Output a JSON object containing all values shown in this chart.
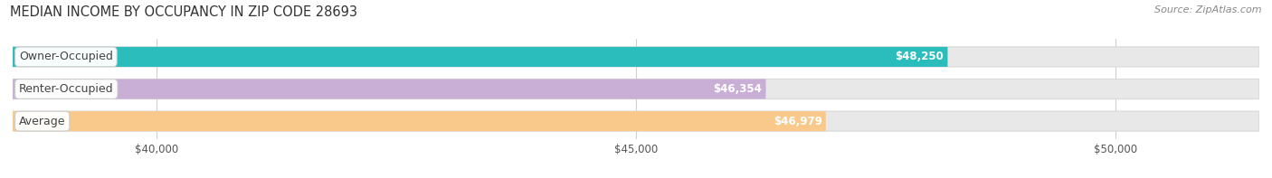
{
  "title": "MEDIAN INCOME BY OCCUPANCY IN ZIP CODE 28693",
  "source": "Source: ZipAtlas.com",
  "categories": [
    "Owner-Occupied",
    "Renter-Occupied",
    "Average"
  ],
  "values": [
    48250,
    46354,
    46979
  ],
  "labels": [
    "$48,250",
    "$46,354",
    "$46,979"
  ],
  "bar_colors": [
    "#2bbcbc",
    "#c9afd6",
    "#f9c98c"
  ],
  "background_color": "#ffffff",
  "plot_bg": "#ffffff",
  "xmin": 38500,
  "xmax": 51500,
  "xticks": [
    40000,
    45000,
    50000
  ],
  "xticklabels": [
    "$40,000",
    "$45,000",
    "$50,000"
  ],
  "title_fontsize": 10.5,
  "source_fontsize": 8,
  "label_fontsize": 8.5,
  "cat_fontsize": 9,
  "tick_fontsize": 8.5,
  "bar_height": 0.62,
  "track_color": "#e8e8e8",
  "track_edge_color": "#d8d8d8",
  "grid_color": "#d0d0d0"
}
